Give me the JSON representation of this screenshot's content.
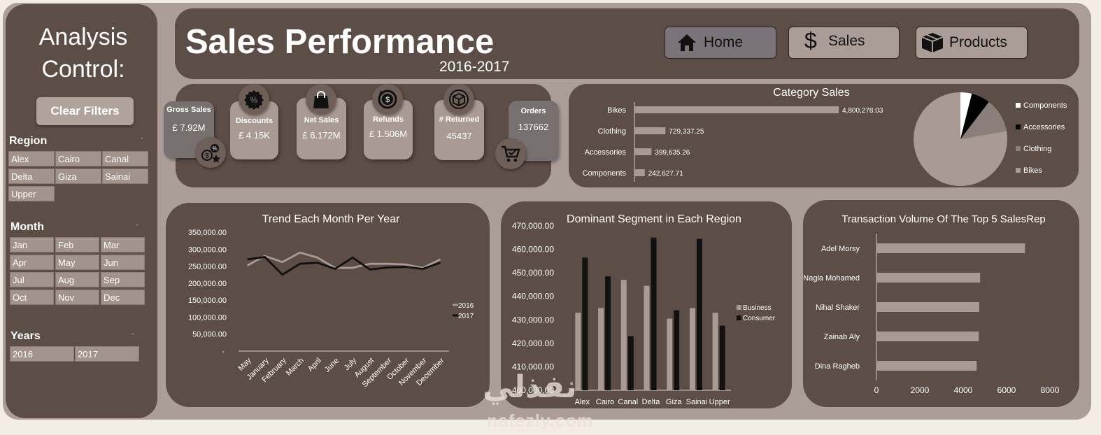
{
  "colors": {
    "page_bg": "#f3ece3",
    "outer": "#ab9d97",
    "panel": "#5d4d47",
    "chip": "#a2938c",
    "light_series": "#a99a94",
    "dark_series": "#111111",
    "pie_bikes": "#a99a94",
    "pie_clothing": "#8a7f7a",
    "pie_accessories": "#000000",
    "pie_components": "#ffffff"
  },
  "sidebar": {
    "title_line1": "Analysis",
    "title_line2": "Control:",
    "clear_filters": "Clear Filters",
    "region": {
      "title": "Region",
      "items": [
        "Alex",
        "Cairo",
        "Canal",
        "Delta",
        "Giza",
        "Sainai",
        "Upper"
      ]
    },
    "month": {
      "title": "Month",
      "items": [
        "Jan",
        "Feb",
        "Mar",
        "Apr",
        "May",
        "Jun",
        "Jul",
        "Aug",
        "Sep",
        "Oct",
        "Nov",
        "Dec"
      ]
    },
    "years": {
      "title": "Years",
      "items": [
        "2016",
        "2017"
      ]
    }
  },
  "header": {
    "title": "Sales Performance",
    "subtitle": "2016-2017"
  },
  "nav": {
    "home": "Home",
    "sales": "Sales",
    "products": "Products",
    "home_icon": "home-icon",
    "sales_icon": "dollar-icon",
    "products_icon": "box-icon"
  },
  "kpis": {
    "gross_sales": {
      "label": "Gross Sales",
      "value": "£ 7.92M"
    },
    "discounts": {
      "label": "Discounts",
      "value": "£ 4.15K"
    },
    "net_sales": {
      "label": "Net Sales",
      "value": "£ 6.172M"
    },
    "refunds": {
      "label": "Refunds",
      "value": "£ 1.506M"
    },
    "returned": {
      "label": "# Returned",
      "value": "45437"
    },
    "orders": {
      "label": "Orders",
      "value": "137662"
    }
  },
  "watermark": {
    "line1": "نفذلي",
    "line2": "nafezly.com"
  },
  "chart_data": [
    {
      "id": "category",
      "type": "bar",
      "orientation": "horizontal",
      "title": "Category Sales",
      "categories": [
        "Bikes",
        "Clothing",
        "Accessories",
        "Components"
      ],
      "values": [
        4800278.03,
        729337.25,
        399635.26,
        242627.71
      ],
      "labels": [
        "4,800,278.03",
        "729,337.25",
        "399,635.26",
        "242,627.71"
      ]
    },
    {
      "id": "category_pie",
      "type": "pie",
      "categories": [
        "Components",
        "Accessories",
        "Clothing",
        "Bikes"
      ],
      "values": [
        242627.71,
        399635.26,
        729337.25,
        4800278.03
      ],
      "legend_position": "right"
    },
    {
      "id": "trend",
      "type": "line",
      "title": "Trend Each Month Per Year",
      "x": [
        "May",
        "January",
        "February",
        "March",
        "April",
        "June",
        "July",
        "August",
        "September",
        "October",
        "November",
        "December"
      ],
      "series": [
        {
          "name": "2016",
          "values": [
            252000,
            280000,
            262000,
            290000,
            275000,
            245000,
            245000,
            257000,
            257000,
            255000,
            245000,
            270000
          ]
        },
        {
          "name": "2017",
          "values": [
            270000,
            277000,
            225000,
            257000,
            260000,
            242000,
            275000,
            240000,
            246000,
            248000,
            242000,
            260000
          ]
        }
      ],
      "ylim": [
        0,
        350000
      ],
      "yticks": [
        0,
        50000,
        100000,
        150000,
        200000,
        250000,
        300000,
        350000
      ],
      "ytick_labels": [
        "-",
        "50,000.00",
        "100,000.00",
        "150,000.00",
        "200,000.00",
        "250,000.00",
        "300,000.00",
        "350,000.00"
      ],
      "legend_position": "right",
      "grid": false
    },
    {
      "id": "segment",
      "type": "bar",
      "title": "Dominant Segment in Each Region",
      "categories": [
        "Alex",
        "Cairo",
        "Canal",
        "Delta",
        "Giza",
        "Sainai",
        "Upper"
      ],
      "series": [
        {
          "name": "Business",
          "values": [
            433000,
            435000,
            447000,
            444500,
            430500,
            435000,
            433000
          ]
        },
        {
          "name": "Consumer",
          "values": [
            456500,
            448500,
            423000,
            465000,
            434000,
            464500,
            427500
          ]
        }
      ],
      "ylim": [
        400000,
        470000
      ],
      "yticks": [
        400000,
        410000,
        420000,
        430000,
        440000,
        450000,
        460000,
        470000
      ],
      "ytick_labels": [
        "400,000.00",
        "410,000.00",
        "420,000.00",
        "430,000.00",
        "440,000.00",
        "450,000.00",
        "460,000.00",
        "470,000.00"
      ],
      "legend_position": "right",
      "grid": false
    },
    {
      "id": "salesrep",
      "type": "bar",
      "orientation": "horizontal",
      "title": "Transaction Volume Of The Top 5 SalesRep",
      "categories": [
        "Adel Morsy",
        "Nagla Mohamed",
        "Nihal Shaker",
        "Zainab Aly",
        "Dina Ragheb"
      ],
      "values": [
        6850,
        4780,
        4740,
        4720,
        4620
      ],
      "xlim": [
        0,
        8000
      ],
      "xticks": [
        0,
        2000,
        4000,
        6000,
        8000
      ],
      "xtick_labels": [
        "0",
        "2000",
        "4000",
        "6000",
        "8000"
      ],
      "grid": false
    }
  ]
}
